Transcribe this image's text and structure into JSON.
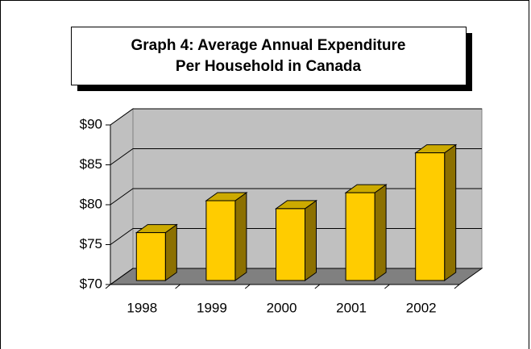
{
  "chart_data": {
    "type": "bar3d",
    "title": [
      "Graph 4: Average Annual Expenditure",
      "Per Household in Canada"
    ],
    "categories": [
      "1998",
      "1999",
      "2000",
      "2001",
      "2002"
    ],
    "values": [
      76,
      80,
      79,
      81,
      86
    ],
    "color": "#ffcc00",
    "ylim": [
      70,
      90
    ],
    "yticks": [
      {
        "value": 70,
        "label": "$70"
      },
      {
        "value": 75,
        "label": "$75"
      },
      {
        "value": 80,
        "label": "$80"
      },
      {
        "value": 85,
        "label": "$85"
      },
      {
        "value": 90,
        "label": "$90"
      }
    ],
    "grid": true
  }
}
